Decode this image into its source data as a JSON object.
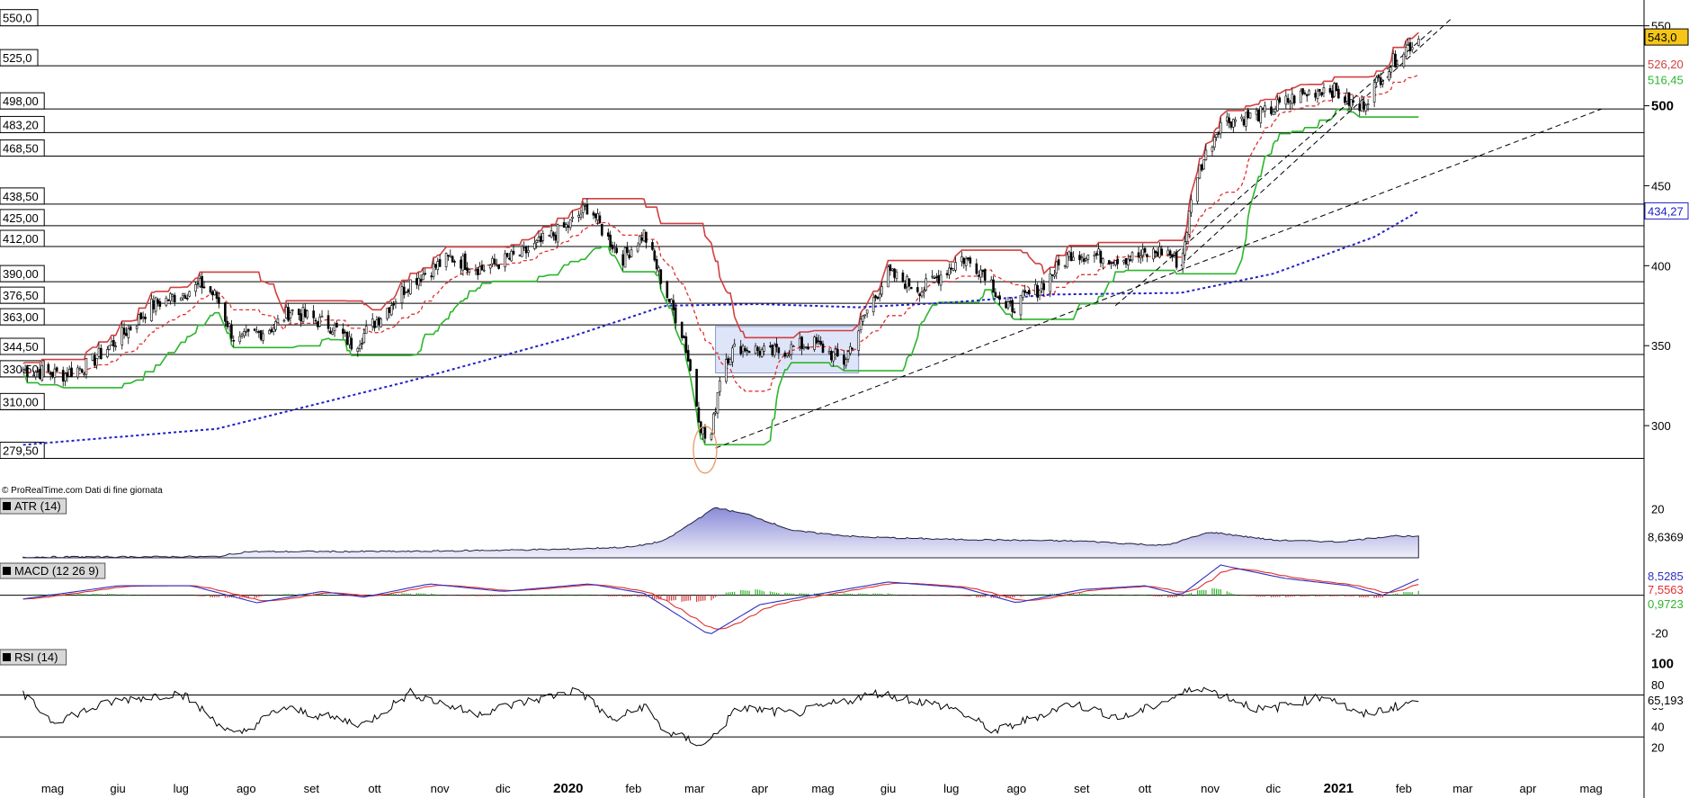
{
  "source_note": "© ProRealTime.com Dati di fine giornata",
  "chart_data": [
    {
      "type": "candlestick",
      "panel": "price",
      "y_ticks": [
        300,
        350,
        400,
        450,
        500,
        550
      ],
      "ylim": [
        268,
        556
      ],
      "last_price": "543,0",
      "last_price_color": "#f5c518",
      "channel_upper_value": "526,20",
      "channel_lower_value": "516,45",
      "sma_value": "434,27",
      "horizontal_levels": [
        "550,0",
        "525,0",
        "498,00",
        "483,20",
        "468,50",
        "438,50",
        "425,00",
        "412,00",
        "390,00",
        "376,50",
        "363,00",
        "344,50",
        "330,50",
        "310,00",
        "279,50"
      ],
      "colors": {
        "upper_channel": "#d24040",
        "lower_channel": "#2db52d",
        "mid_line": "#e03030",
        "sma": "#2020c8",
        "trendline": "#000000"
      },
      "x_labels": [
        "mag",
        "giu",
        "lug",
        "ago",
        "set",
        "ott",
        "nov",
        "dic",
        "2020",
        "feb",
        "mar",
        "apr",
        "mag",
        "giu",
        "lug",
        "ago",
        "set",
        "ott",
        "nov",
        "dic",
        "2021",
        "feb",
        "mar",
        "apr",
        "mag"
      ],
      "close_path": [
        [
          "2019-05-01",
          335
        ],
        [
          "2019-05-20",
          332
        ],
        [
          "2019-06-01",
          338
        ],
        [
          "2019-06-20",
          360
        ],
        [
          "2019-07-01",
          375
        ],
        [
          "2019-07-25",
          388
        ],
        [
          "2019-08-01",
          380
        ],
        [
          "2019-08-10",
          352
        ],
        [
          "2019-08-28",
          362
        ],
        [
          "2019-09-05",
          372
        ],
        [
          "2019-09-25",
          362
        ],
        [
          "2019-10-05",
          350
        ],
        [
          "2019-10-20",
          372
        ],
        [
          "2019-11-01",
          390
        ],
        [
          "2019-11-20",
          405
        ],
        [
          "2019-12-05",
          398
        ],
        [
          "2019-12-25",
          408
        ],
        [
          "2020-01-15",
          425
        ],
        [
          "2020-01-25",
          438
        ],
        [
          "2020-02-01",
          420
        ],
        [
          "2020-02-10",
          405
        ],
        [
          "2020-02-20",
          420
        ],
        [
          "2020-03-01",
          385
        ],
        [
          "2020-03-10",
          355
        ],
        [
          "2020-03-18",
          300
        ],
        [
          "2020-03-22",
          285
        ],
        [
          "2020-03-28",
          340
        ],
        [
          "2020-04-05",
          350
        ],
        [
          "2020-04-20",
          345
        ],
        [
          "2020-05-10",
          352
        ],
        [
          "2020-05-25",
          340
        ],
        [
          "2020-06-05",
          372
        ],
        [
          "2020-06-15",
          395
        ],
        [
          "2020-07-01",
          385
        ],
        [
          "2020-07-20",
          405
        ],
        [
          "2020-08-01",
          395
        ],
        [
          "2020-08-10",
          372
        ],
        [
          "2020-08-25",
          385
        ],
        [
          "2020-09-10",
          408
        ],
        [
          "2020-09-30",
          405
        ],
        [
          "2020-10-10",
          405
        ],
        [
          "2020-10-25",
          410
        ],
        [
          "2020-11-01",
          400
        ],
        [
          "2020-11-08",
          455
        ],
        [
          "2020-11-20",
          490
        ],
        [
          "2020-12-10",
          495
        ],
        [
          "2020-12-25",
          505
        ],
        [
          "2021-01-10",
          512
        ],
        [
          "2021-01-25",
          498
        ],
        [
          "2021-02-05",
          520
        ],
        [
          "2021-02-15",
          535
        ],
        [
          "2021-02-22",
          542
        ]
      ],
      "sma_path": [
        [
          "2019-05-01",
          288
        ],
        [
          "2019-08-01",
          298
        ],
        [
          "2019-11-01",
          328
        ],
        [
          "2020-01-15",
          355
        ],
        [
          "2020-03-01",
          375
        ],
        [
          "2020-04-15",
          376
        ],
        [
          "2020-06-01",
          374
        ],
        [
          "2020-07-15",
          377
        ],
        [
          "2020-09-01",
          382
        ],
        [
          "2020-11-01",
          383
        ],
        [
          "2020-12-15",
          395
        ],
        [
          "2021-02-01",
          418
        ],
        [
          "2021-02-22",
          434
        ]
      ],
      "box_range": {
        "x": [
          "2020-03-25",
          "2020-06-01"
        ],
        "y": [
          333,
          362
        ]
      },
      "highlight_low": [
        "2020-03-20",
        285
      ]
    },
    {
      "type": "area",
      "panel": "ATR",
      "name": "ATR (14)",
      "y_ticks": [
        20
      ],
      "ylim": [
        0,
        22
      ],
      "last_value": "8,6369",
      "values_path": [
        [
          "2019-05-01",
          0.3
        ],
        [
          "2019-08-01",
          0.5
        ],
        [
          "2019-08-15",
          2.5
        ],
        [
          "2019-11-01",
          2.6
        ],
        [
          "2020-01-15",
          3.5
        ],
        [
          "2020-02-15",
          4.5
        ],
        [
          "2020-03-01",
          7.0
        ],
        [
          "2020-03-15",
          15.0
        ],
        [
          "2020-03-25",
          20.5
        ],
        [
          "2020-04-10",
          17.5
        ],
        [
          "2020-05-01",
          11.0
        ],
        [
          "2020-06-01",
          8.5
        ],
        [
          "2020-07-15",
          7.5
        ],
        [
          "2020-09-15",
          6.8
        ],
        [
          "2020-10-25",
          5.0
        ],
        [
          "2020-11-15",
          10.5
        ],
        [
          "2020-12-15",
          7.2
        ],
        [
          "2021-01-15",
          6.5
        ],
        [
          "2021-02-10",
          9.0
        ],
        [
          "2021-02-22",
          8.6
        ]
      ]
    },
    {
      "type": "line",
      "panel": "MACD",
      "name": "MACD (12 26 9)",
      "y_ticks": [
        -20
      ],
      "ylim": [
        -24,
        16
      ],
      "values": {
        "macd": "8,5285",
        "signal": "7,5563",
        "histogram": "0,9723"
      },
      "macd_path": [
        [
          "2019-05-01",
          -2
        ],
        [
          "2019-06-15",
          5
        ],
        [
          "2019-07-20",
          5
        ],
        [
          "2019-08-20",
          -4
        ],
        [
          "2019-09-20",
          2
        ],
        [
          "2019-10-10",
          -1
        ],
        [
          "2019-11-10",
          6
        ],
        [
          "2019-12-15",
          2
        ],
        [
          "2020-01-25",
          6
        ],
        [
          "2020-02-20",
          1
        ],
        [
          "2020-03-22",
          -21
        ],
        [
          "2020-04-15",
          -5
        ],
        [
          "2020-05-15",
          1
        ],
        [
          "2020-06-15",
          7
        ],
        [
          "2020-07-20",
          4
        ],
        [
          "2020-08-15",
          -4
        ],
        [
          "2020-09-15",
          3
        ],
        [
          "2020-10-15",
          5
        ],
        [
          "2020-11-01",
          0
        ],
        [
          "2020-11-20",
          16
        ],
        [
          "2020-12-20",
          9
        ],
        [
          "2021-01-20",
          5
        ],
        [
          "2021-02-05",
          0
        ],
        [
          "2021-02-22",
          8.5
        ]
      ],
      "colors": {
        "macd": "#3030c0",
        "signal": "#e03030",
        "hist_pos": "#2db52d",
        "hist_neg": "#d24040"
      }
    },
    {
      "type": "line",
      "panel": "RSI",
      "name": "RSI (14)",
      "y_ticks": [
        20,
        40,
        60,
        80,
        100
      ],
      "ylim": [
        0,
        110
      ],
      "levels": [
        70,
        30
      ],
      "last_value": "65,193",
      "values_path": [
        [
          "2019-05-01",
          70
        ],
        [
          "2019-05-15",
          45
        ],
        [
          "2019-06-15",
          65
        ],
        [
          "2019-07-15",
          72
        ],
        [
          "2019-08-10",
          30
        ],
        [
          "2019-09-01",
          58
        ],
        [
          "2019-09-20",
          50
        ],
        [
          "2019-10-10",
          42
        ],
        [
          "2019-11-01",
          72
        ],
        [
          "2019-12-01",
          52
        ],
        [
          "2020-01-20",
          75
        ],
        [
          "2020-02-05",
          45
        ],
        [
          "2020-02-20",
          60
        ],
        [
          "2020-03-01",
          35
        ],
        [
          "2020-03-20",
          22
        ],
        [
          "2020-04-05",
          58
        ],
        [
          "2020-05-01",
          52
        ],
        [
          "2020-06-10",
          72
        ],
        [
          "2020-07-15",
          58
        ],
        [
          "2020-08-05",
          35
        ],
        [
          "2020-09-10",
          62
        ],
        [
          "2020-10-05",
          48
        ],
        [
          "2020-11-10",
          78
        ],
        [
          "2020-12-10",
          55
        ],
        [
          "2021-01-10",
          70
        ],
        [
          "2021-01-25",
          50
        ],
        [
          "2021-02-22",
          65
        ]
      ]
    }
  ]
}
